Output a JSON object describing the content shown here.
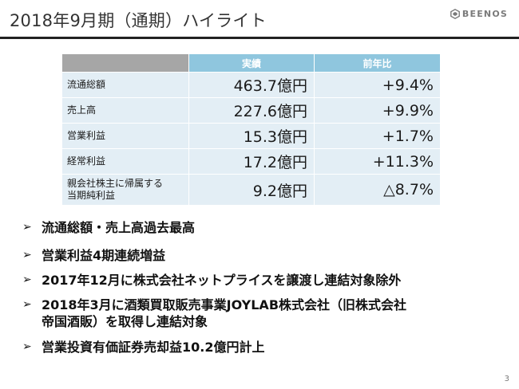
{
  "header": {
    "title": "2018年9月期（通期）ハイライト",
    "logo_text": "BEENOS",
    "logo_icon": "hexagon-logo-icon"
  },
  "table": {
    "headers": [
      "",
      "実績",
      "前年比"
    ],
    "rows": [
      {
        "label_lines": [
          "流通総額"
        ],
        "actual": "463.7億円",
        "yoy": "+9.4%"
      },
      {
        "label_lines": [
          "売上高"
        ],
        "actual": "227.6億円",
        "yoy": "+9.9%"
      },
      {
        "label_lines": [
          "営業利益"
        ],
        "actual": "15.3億円",
        "yoy": "+1.7%"
      },
      {
        "label_lines": [
          "経常利益"
        ],
        "actual": "17.2億円",
        "yoy": "+11.3%"
      },
      {
        "label_lines": [
          "親会社株主に帰属する",
          "当期純利益"
        ],
        "actual": "9.2億円",
        "yoy": "△8.7%"
      }
    ]
  },
  "bullets": {
    "marker": "➢",
    "items": [
      {
        "lines": [
          "流通総額・売上高過去最高"
        ]
      },
      {
        "lines": [
          "営業利益4期連続増益"
        ]
      },
      {
        "lines": [
          "2017年12月に株式会社ネットプライスを譲渡し連結対象除外"
        ]
      },
      {
        "lines": [
          "2018年3月に酒類買取販売事業JOYLAB株式会社（旧株式会社",
          "帝国酒販）を取得し連結対象"
        ]
      },
      {
        "lines": [
          "営業投資有価証券売却益10.2億円計上"
        ]
      }
    ]
  },
  "page_number": "3",
  "colors": {
    "header_accent": "#8fc6de",
    "header_corner": "#a6a6a6",
    "cell_bg": "#e3eef5",
    "title_rule": "#222222"
  }
}
